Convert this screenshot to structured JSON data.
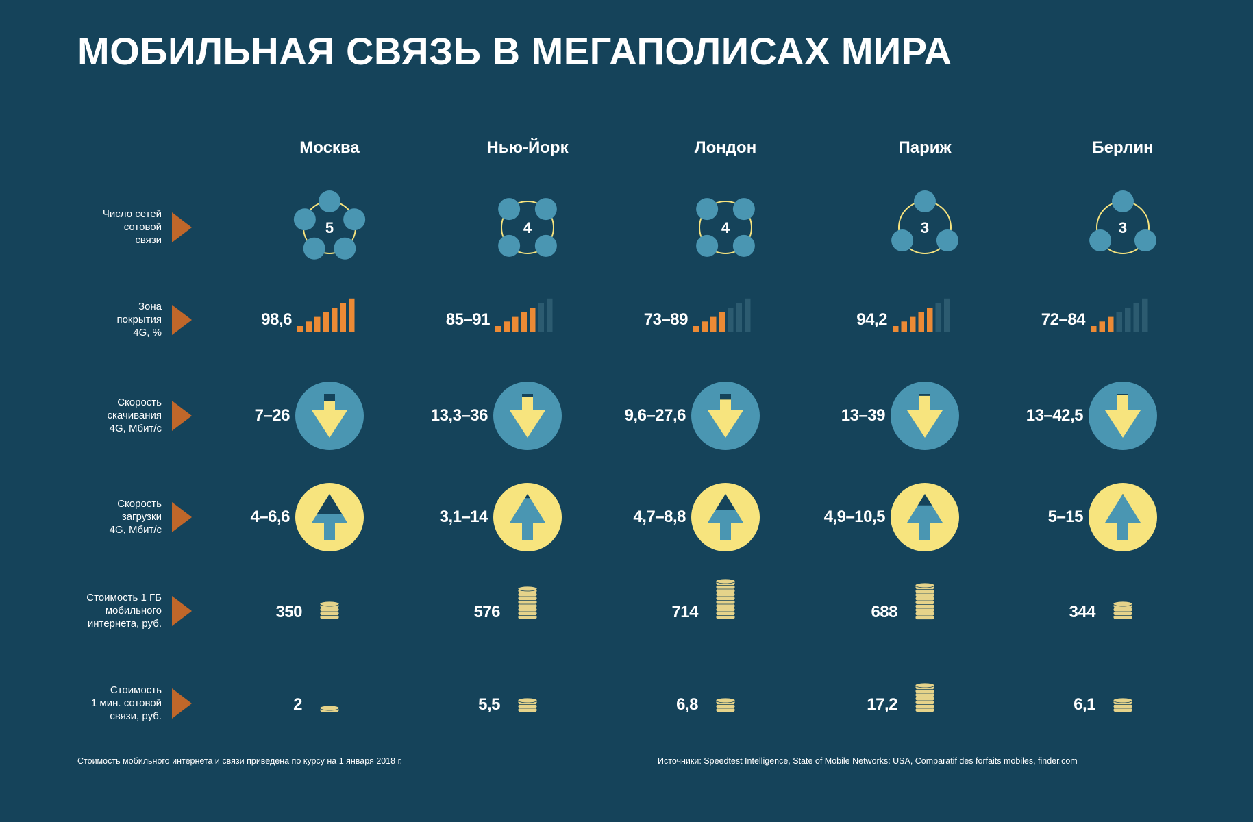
{
  "title": "МОБИЛЬНАЯ СВЯЗЬ В МЕГАПОЛИСАХ МИРА",
  "colors": {
    "background": "#15435a",
    "blue": "#4a96b2",
    "yellow": "#f7e47e",
    "orange": "#ec8a35",
    "dim_bar": "#2c5b70",
    "marker": "#c0672a",
    "coin": "#e5d38a"
  },
  "chart_data": {
    "type": "table",
    "title": "МОБИЛЬНАЯ СВЯЗЬ В МЕГАПОЛИСАХ МИРА",
    "cities": [
      "Москва",
      "Нью-Йорк",
      "Лондон",
      "Париж",
      "Берлин"
    ],
    "rows": [
      {
        "label": "Число сетей сотовой связи",
        "values": [
          "5",
          "4",
          "4",
          "3",
          "3"
        ],
        "numeric": [
          5,
          4,
          4,
          3,
          3
        ]
      },
      {
        "label": "Зона покрытия 4G, %",
        "values": [
          "98,6",
          "85–91",
          "73–89",
          "94,2",
          "72–84"
        ],
        "signal_bars_lit": [
          7,
          5,
          4,
          5,
          3
        ],
        "signal_bars_total": 7
      },
      {
        "label": "Скорость скачивания 4G, Мбит/с",
        "values": [
          "7–26",
          "13,3–36",
          "9,6–27,6",
          "13–39",
          "13–42,5"
        ],
        "fill": [
          0.55,
          0.8,
          0.65,
          0.88,
          0.92
        ]
      },
      {
        "label": "Скорость загрузки 4G, Мбит/с",
        "values": [
          "4–6,6",
          "3,1–14",
          "4,7–8,8",
          "4,9–10,5",
          "5–15"
        ],
        "fill": [
          0.3,
          0.85,
          0.45,
          0.6,
          0.95
        ]
      },
      {
        "label": "Стоимость 1 ГБ мобильного интернета, руб.",
        "values": [
          "350",
          "576",
          "714",
          "688",
          "344"
        ],
        "numeric": [
          350,
          576,
          714,
          688,
          344
        ],
        "coins": [
          4,
          8,
          10,
          9,
          4
        ]
      },
      {
        "label": "Стоимость 1 мин. сотовой связи, руб.",
        "values": [
          "2",
          "5,5",
          "6,8",
          "17,2",
          "6,1"
        ],
        "numeric": [
          2,
          5.5,
          6.8,
          17.2,
          6.1
        ],
        "coins": [
          1,
          3,
          3,
          7,
          3
        ]
      }
    ]
  },
  "row_labels": [
    [
      "Число сетей",
      "сотовой",
      "связи"
    ],
    [
      "Зона",
      "покрытия",
      "4G, %"
    ],
    [
      "Скорость",
      "скачивания",
      "4G, Мбит/с"
    ],
    [
      "Скорость",
      "загрузки",
      "4G, Мбит/с"
    ],
    [
      "Стоимость 1 ГБ",
      "мобильного",
      "интернета, руб."
    ],
    [
      "Стоимость",
      "1 мин. сотовой",
      "связи, руб."
    ]
  ],
  "footer": {
    "note": "Стоимость мобильного интернета и связи приведена по курсу на 1 января 2018 г.",
    "sources": "Источники: Speedtest Intelligence, State of Mobile Networks: USA, Comparatif des forfaits mobiles, finder.com"
  }
}
